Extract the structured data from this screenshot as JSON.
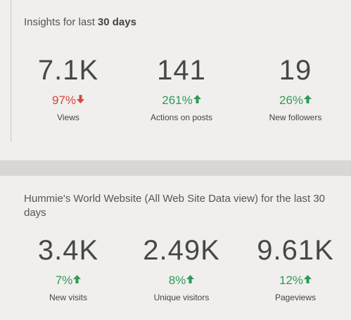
{
  "cards": [
    {
      "title": "Insights for last",
      "title_bold": "30 days",
      "stats": [
        {
          "value": "7.1K",
          "change": "97%",
          "trend": "down",
          "label": "Views"
        },
        {
          "value": "141",
          "change": "261%",
          "trend": "up",
          "label": "Actions on posts"
        },
        {
          "value": "19",
          "change": "26%",
          "trend": "up",
          "label": "New followers"
        }
      ]
    },
    {
      "title": "Hummie's World Website (All Web Site Data view) for the last 30 days",
      "stats": [
        {
          "value": "3.4K",
          "change": "7%",
          "trend": "up",
          "label": "New visits"
        },
        {
          "value": "2.49K",
          "change": "8%",
          "trend": "up",
          "label": "Unique visitors"
        },
        {
          "value": "9.61K",
          "change": "12%",
          "trend": "up",
          "label": "Pageviews"
        }
      ]
    }
  ]
}
